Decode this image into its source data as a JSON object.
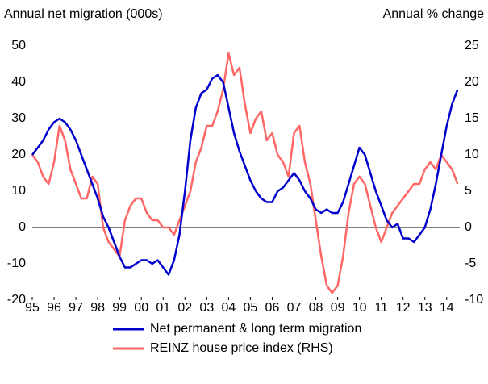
{
  "chart_data": {
    "type": "line",
    "y_label": "Annual net migration (000s)",
    "y2_label": "Annual % change",
    "x": [
      1995,
      1995.25,
      1995.5,
      1995.75,
      1996,
      1996.25,
      1996.5,
      1996.75,
      1997,
      1997.25,
      1997.5,
      1997.75,
      1998,
      1998.25,
      1998.5,
      1998.75,
      1999,
      1999.25,
      1999.5,
      1999.75,
      2000,
      2000.25,
      2000.5,
      2000.75,
      2001,
      2001.25,
      2001.5,
      2001.75,
      2002,
      2002.25,
      2002.5,
      2002.75,
      2003,
      2003.25,
      2003.5,
      2003.75,
      2004,
      2004.25,
      2004.5,
      2004.75,
      2005,
      2005.25,
      2005.5,
      2005.75,
      2006,
      2006.25,
      2006.5,
      2006.75,
      2007,
      2007.25,
      2007.5,
      2007.75,
      2008,
      2008.25,
      2008.5,
      2008.75,
      2009,
      2009.25,
      2009.5,
      2009.75,
      2010,
      2010.25,
      2010.5,
      2010.75,
      2011,
      2011.25,
      2011.5,
      2011.75,
      2012,
      2012.25,
      2012.5,
      2012.75,
      2013,
      2013.25,
      2013.5,
      2013.75,
      2014,
      2014.25,
      2014.5
    ],
    "series": [
      {
        "name": "Net permanent & long term migration",
        "color": "#0000cc",
        "axis": "y",
        "values": [
          20,
          22,
          24,
          27,
          29,
          30,
          29,
          27,
          24,
          20,
          16,
          12,
          8,
          3,
          0,
          -4,
          -8,
          -11,
          -11,
          -10,
          -9,
          -9,
          -10,
          -9,
          -11,
          -13,
          -9,
          -2,
          10,
          24,
          33,
          37,
          38,
          41,
          42,
          40,
          33,
          26,
          21,
          17,
          13,
          10,
          8,
          7,
          7,
          10,
          11,
          13,
          15,
          13,
          10,
          8,
          5,
          4,
          5,
          4,
          4,
          7,
          12,
          17,
          22,
          20,
          15,
          10,
          6,
          2,
          0,
          1,
          -3,
          -3,
          -4,
          -2,
          0,
          5,
          12,
          20,
          28,
          34,
          38
        ]
      },
      {
        "name": "REINZ house price index (RHS)",
        "color": "#ff6666",
        "axis": "y2",
        "values": [
          10,
          9,
          7,
          6,
          9,
          14,
          12,
          8,
          6,
          4,
          4,
          7,
          6,
          0,
          -2,
          -3,
          -4,
          1,
          3,
          4,
          4,
          2,
          1,
          1,
          0,
          0,
          -1,
          1,
          3,
          5,
          9,
          11,
          14,
          14,
          16,
          19,
          24,
          21,
          22,
          17,
          13,
          15,
          16,
          12,
          13,
          10,
          9,
          7,
          13,
          14,
          9,
          6,
          1,
          -4,
          -8,
          -9,
          -8,
          -4,
          2,
          6,
          7,
          6,
          3,
          0,
          -2,
          0,
          2,
          3,
          4,
          5,
          6,
          6,
          8,
          9,
          8,
          10,
          9,
          8,
          6
        ]
      }
    ],
    "xlim": [
      1995,
      2014.6
    ],
    "xticks": [
      {
        "value": 1995,
        "label": "95"
      },
      {
        "value": 1996,
        "label": "96"
      },
      {
        "value": 1997,
        "label": "97"
      },
      {
        "value": 1998,
        "label": "98"
      },
      {
        "value": 1999,
        "label": "99"
      },
      {
        "value": 2000,
        "label": "00"
      },
      {
        "value": 2001,
        "label": "01"
      },
      {
        "value": 2002,
        "label": "02"
      },
      {
        "value": 2003,
        "label": "03"
      },
      {
        "value": 2004,
        "label": "04"
      },
      {
        "value": 2005,
        "label": "05"
      },
      {
        "value": 2006,
        "label": "06"
      },
      {
        "value": 2007,
        "label": "07"
      },
      {
        "value": 2008,
        "label": "08"
      },
      {
        "value": 2009,
        "label": "09"
      },
      {
        "value": 2010,
        "label": "10"
      },
      {
        "value": 2011,
        "label": "11"
      },
      {
        "value": 2012,
        "label": "12"
      },
      {
        "value": 2013,
        "label": "13"
      },
      {
        "value": 2014,
        "label": "14"
      }
    ],
    "ylim": [
      -20,
      50
    ],
    "yticks": [
      -20,
      -10,
      0,
      10,
      20,
      30,
      40,
      50
    ],
    "y2lim": [
      -10,
      25
    ],
    "y2ticks": [
      -10,
      -5,
      0,
      5,
      10,
      15,
      20,
      25
    ]
  }
}
